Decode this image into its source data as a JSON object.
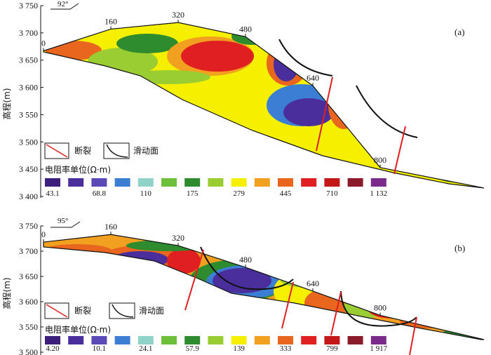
{
  "chart_data": [
    {
      "panel": "(a)",
      "type": "heatmap",
      "ylabel": "高程(m)",
      "azimuth": "92°",
      "y_ticks": [
        "3 750",
        "3 700",
        "3 650",
        "3 600",
        "3 550",
        "3 500",
        "3 450",
        "3 400"
      ],
      "y_values": [
        3750,
        3700,
        3650,
        3600,
        3550,
        3500,
        3450,
        3400
      ],
      "ylim": [
        3400,
        3750
      ],
      "xlim": [
        0,
        1000
      ],
      "distance_labels": [
        {
          "text": "0",
          "x": 0,
          "elev": 3667
        },
        {
          "text": "160",
          "x": 160,
          "elev": 3707
        },
        {
          "text": "320",
          "x": 320,
          "elev": 3719
        },
        {
          "text": "480",
          "x": 480,
          "elev": 3693
        },
        {
          "text": "640",
          "x": 640,
          "elev": 3603
        },
        {
          "text": "800",
          "x": 800,
          "elev": 3453
        }
      ],
      "colorbar_title": "电阻率单位(Ω·m)",
      "colorbar_tick_labels": [
        "43.1",
        "68.8",
        "110",
        "175",
        "279",
        "445",
        "710",
        "1 132"
      ],
      "colorbar_colors": [
        "#3b1f7a",
        "#4a2f9c",
        "#5a4ab8",
        "#3b7fd4",
        "#8fd3c8",
        "#6dbf3a",
        "#2e8b2e",
        "#9acd32",
        "#f5f000",
        "#f2a020",
        "#e8661e",
        "#e02020",
        "#c41818",
        "#8b1a2a",
        "#7a2a8a"
      ],
      "legend": {
        "fault": "断裂",
        "slide": "滑动面"
      }
    },
    {
      "panel": "(b)",
      "type": "heatmap",
      "ylabel": "高程(m)",
      "azimuth": "95°",
      "y_ticks": [
        "3 750",
        "3 700",
        "3 650",
        "3 600",
        "3 550",
        "3 500"
      ],
      "y_values": [
        3750,
        3700,
        3650,
        3600,
        3550,
        3500
      ],
      "ylim": [
        3500,
        3750
      ],
      "xlim": [
        0,
        1000
      ],
      "distance_labels": [
        {
          "text": "0",
          "x": 0,
          "elev": 3718
        },
        {
          "text": "160",
          "x": 160,
          "elev": 3733
        },
        {
          "text": "320",
          "x": 320,
          "elev": 3711
        },
        {
          "text": "480",
          "x": 480,
          "elev": 3668
        },
        {
          "text": "640",
          "x": 640,
          "elev": 3621
        },
        {
          "text": "800",
          "x": 800,
          "elev": 3573
        }
      ],
      "colorbar_title": "电阻率单位(Ω·m)",
      "colorbar_tick_labels": [
        "4.20",
        "10.1",
        "24.1",
        "57.9",
        "139",
        "333",
        "799",
        "1 917"
      ],
      "colorbar_colors": [
        "#3b1f7a",
        "#4a2f9c",
        "#5a4ab8",
        "#3b7fd4",
        "#8fd3c8",
        "#6dbf3a",
        "#2e8b2e",
        "#9acd32",
        "#f5f000",
        "#f2a020",
        "#e8661e",
        "#e02020",
        "#c41818",
        "#8b1a2a",
        "#7a2a8a"
      ],
      "legend": {
        "fault": "断裂",
        "slide": "滑动面"
      }
    }
  ]
}
